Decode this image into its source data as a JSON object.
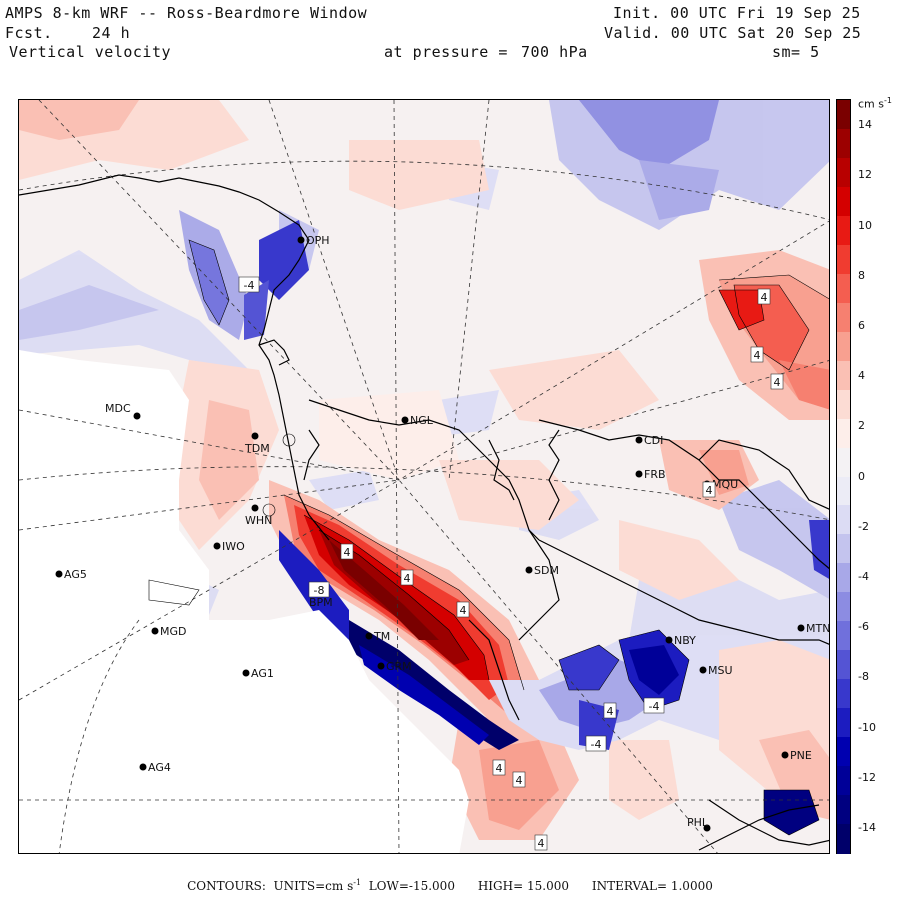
{
  "header": {
    "title": "AMPS 8-km WRF -- Ross-Beardmore Window",
    "fcst_label": "Fcst.",
    "fcst_value": "24 h",
    "field": "Vertical velocity",
    "init": "Init. 00 UTC Fri 19 Sep 25",
    "valid": "Valid. 00 UTC Sat 20 Sep 25",
    "pressure_label": "at pressure =",
    "pressure_value": "700 hPa",
    "smoothing": "sm= 5"
  },
  "colorbar": {
    "units": "cm s",
    "units_exp": "-1",
    "tick_labels": [
      "14",
      "12",
      "10",
      "8",
      "6",
      "4",
      "2",
      "0",
      "-2",
      "-4",
      "-6",
      "-8",
      "-10",
      "-12",
      "-14"
    ],
    "colors": [
      "#7a0000",
      "#9c0000",
      "#b80000",
      "#d40000",
      "#e81a14",
      "#f03c30",
      "#f45e50",
      "#f68070",
      "#f8a090",
      "#fac0b4",
      "#fcdcd4",
      "#fdeeea",
      "#f4f2f4",
      "#ececf6",
      "#dcdcf4",
      "#c4c4ee",
      "#a8a8e8",
      "#8c8ce2",
      "#7070dc",
      "#5454d4",
      "#3838cc",
      "#1c1cc0",
      "#0000b0",
      "#000098",
      "#000080",
      "#00006a"
    ]
  },
  "stations": [
    {
      "code": "OPH"
    },
    {
      "code": "MDC"
    },
    {
      "code": "NGL"
    },
    {
      "code": "TDM"
    },
    {
      "code": "WHN"
    },
    {
      "code": "IWO"
    },
    {
      "code": "AG5"
    },
    {
      "code": "SDM"
    },
    {
      "code": "BPM"
    },
    {
      "code": "MGD"
    },
    {
      "code": "TM"
    },
    {
      "code": "GRM"
    },
    {
      "code": "AG1"
    },
    {
      "code": "AG4"
    },
    {
      "code": "FRB"
    },
    {
      "code": "CDI"
    },
    {
      "code": "MQU"
    },
    {
      "code": "NBY"
    },
    {
      "code": "MSU"
    },
    {
      "code": "MTN"
    },
    {
      "code": "PNE"
    },
    {
      "code": "PHL"
    }
  ],
  "contour_labels": [
    "4",
    "4",
    "4",
    "4",
    "4",
    "4",
    "4",
    "4",
    "4",
    "4",
    "-4",
    "-4",
    "-4",
    "-8",
    "4"
  ],
  "footer": {
    "contours_label": "CONTOURS:",
    "units_label": "UNITS=cm s",
    "units_exp": "-1",
    "low_label": "LOW=",
    "low_value": "-15.000",
    "high_label": "HIGH=",
    "high_value": "15.000",
    "interval_label": "INTERVAL=",
    "interval_value": "1.0000"
  }
}
